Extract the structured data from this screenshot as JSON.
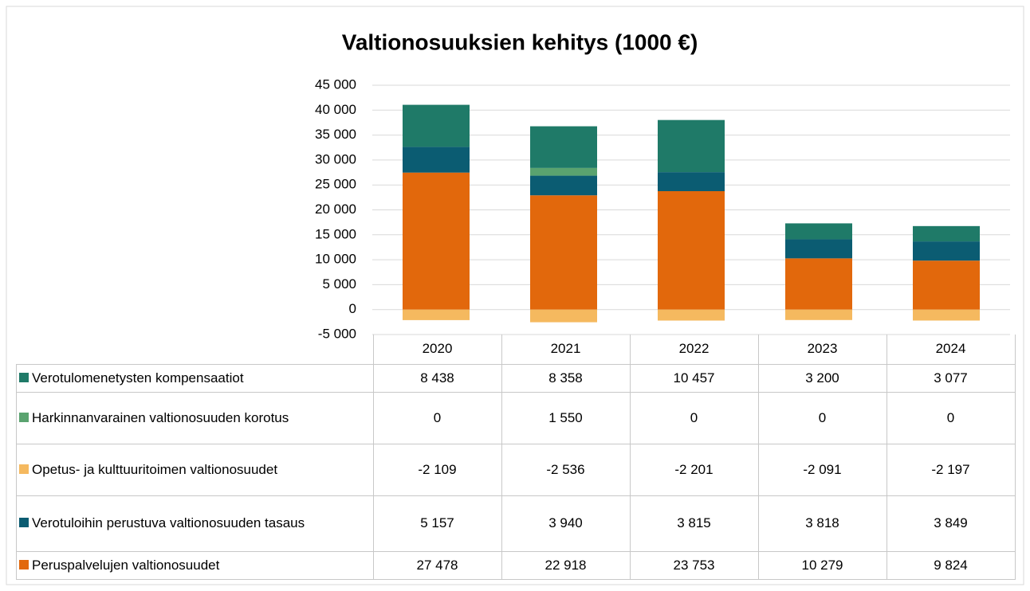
{
  "chart_data": {
    "type": "bar",
    "stacked": true,
    "title": "Valtionosuuksien kehitys (1000 €)",
    "categories": [
      "2020",
      "2021",
      "2022",
      "2023",
      "2024"
    ],
    "series": [
      {
        "name": "Verotulomenetysten kompensaatiot",
        "color": "#1f7a68",
        "values": [
          8438,
          8358,
          10457,
          3200,
          3077
        ],
        "value_labels": [
          "8 438",
          "8 358",
          "10 457",
          "3 200",
          "3 077"
        ]
      },
      {
        "name": "Harkinnanvarainen valtionosuuden korotus",
        "color": "#5aa36f",
        "values": [
          0,
          1550,
          0,
          0,
          0
        ],
        "value_labels": [
          "0",
          "1 550",
          "0",
          "0",
          "0"
        ]
      },
      {
        "name": "Opetus- ja kulttuuritoimen valtionosuudet",
        "color": "#f5b95f",
        "values": [
          -2109,
          -2536,
          -2201,
          -2091,
          -2197
        ],
        "value_labels": [
          "-2 109",
          "-2 536",
          "-2 201",
          "-2 091",
          "-2 197"
        ]
      },
      {
        "name": "Verotuloihin perustuva valtionosuuden tasaus",
        "color": "#0b5c72",
        "values": [
          5157,
          3940,
          3815,
          3818,
          3849
        ],
        "value_labels": [
          "5 157",
          "3 940",
          "3 815",
          "3 818",
          "3 849"
        ]
      },
      {
        "name": "Peruspalvelujen valtionosuudet",
        "color": "#e2680c",
        "values": [
          27478,
          22918,
          23753,
          10279,
          9824
        ],
        "value_labels": [
          "27 478",
          "22 918",
          "23 753",
          "10 279",
          "9 824"
        ]
      }
    ],
    "ylim": [
      -5000,
      45000
    ],
    "yticks": [
      {
        "value": -5000,
        "label": "-5 000"
      },
      0,
      {
        "value": 5000,
        "label": "5 000"
      },
      {
        "value": 10000,
        "label": "10 000"
      },
      {
        "value": 15000,
        "label": "15 000"
      },
      {
        "value": 20000,
        "label": "20 000"
      },
      {
        "value": 25000,
        "label": "25 000"
      },
      {
        "value": 30000,
        "label": "30 000"
      },
      {
        "value": 35000,
        "label": "35 000"
      },
      {
        "value": 40000,
        "label": "40 000"
      },
      {
        "value": 45000,
        "label": "45 000"
      }
    ],
    "grid": true
  }
}
